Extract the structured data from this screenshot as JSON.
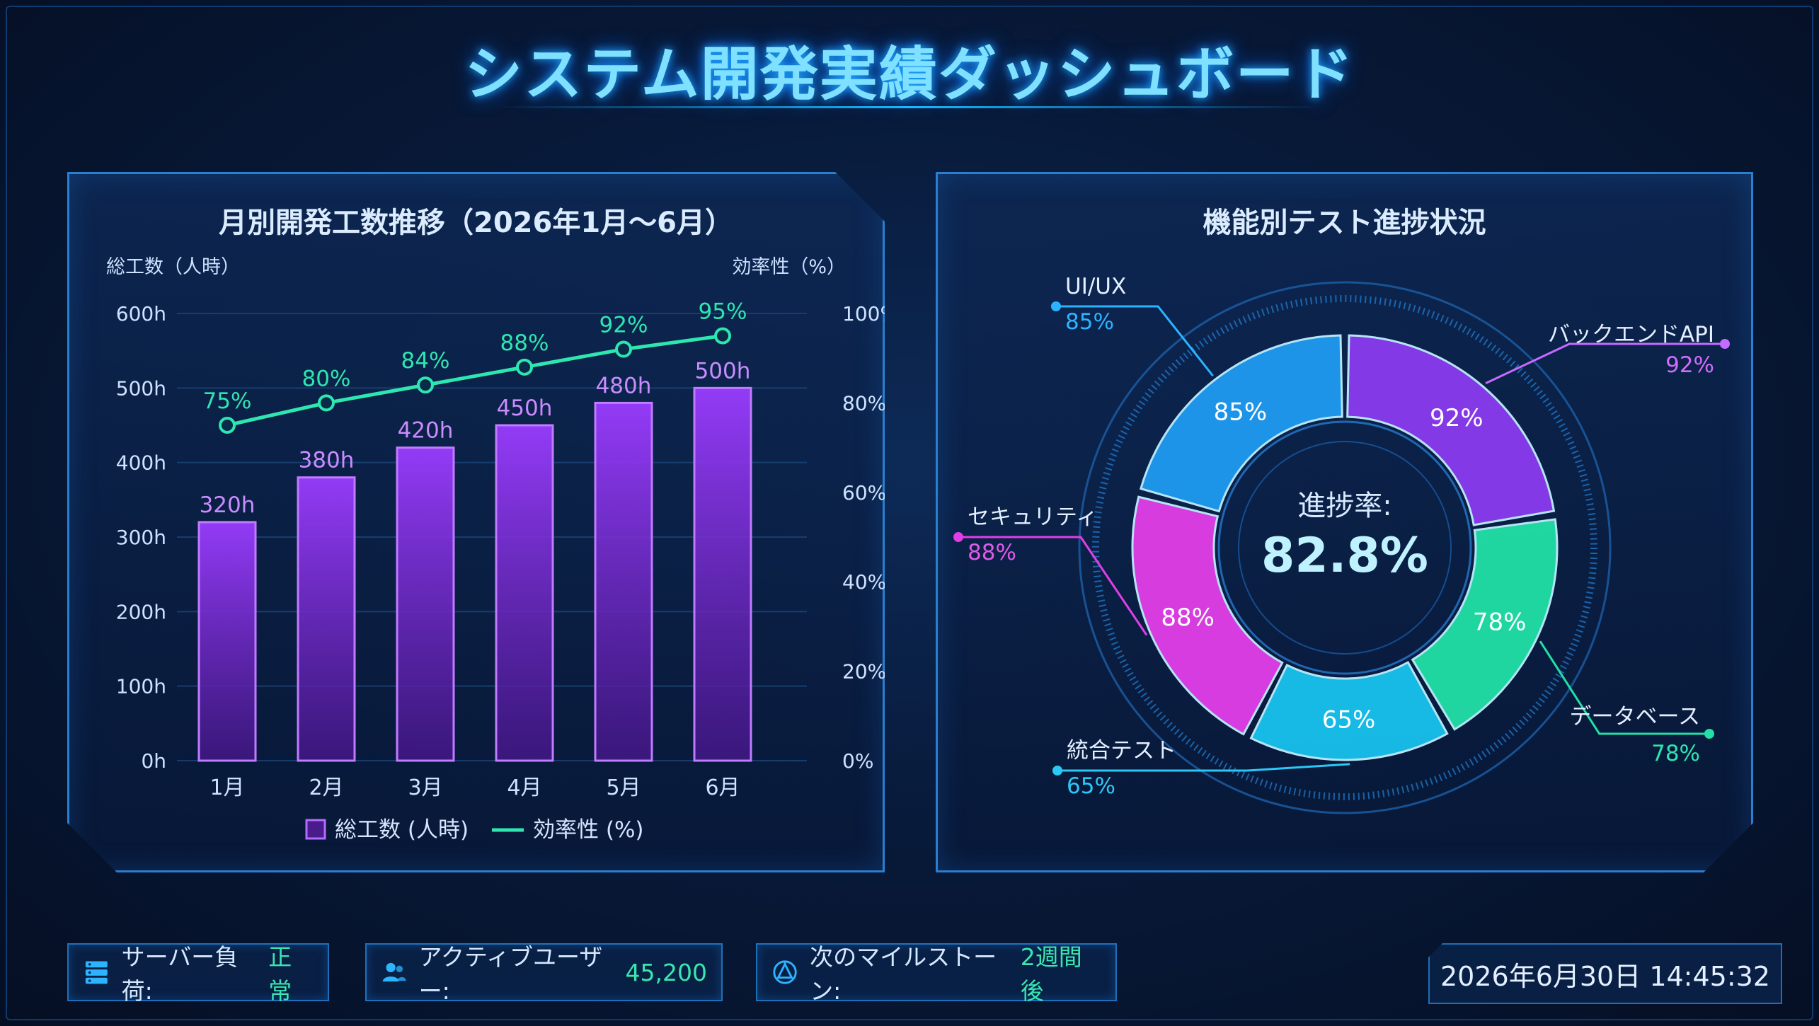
{
  "dashboard": {
    "title": "システム開発実績ダッシュボード"
  },
  "left_panel": {
    "title": "月別開発工数推移（2026年1月〜6月）",
    "y_left_label": "総工数（人時）",
    "y_right_label": "効率性（%）",
    "legend_bar": "総工数 (人時)",
    "legend_line": "効率性 (%)"
  },
  "right_panel": {
    "title": "機能別テスト進捗状況",
    "center_label": "進捗率:",
    "center_value": "82.8%"
  },
  "status_bar": {
    "server_label": "サーバー負荷:",
    "server_value": "正常",
    "users_label": "アクティブユーザー:",
    "users_value": "45,200",
    "milestone_label": "次のマイルストーン:",
    "milestone_value": "2週間後",
    "datetime": "2026年6月30日 14:45:32"
  },
  "colors": {
    "bar": "#a54dff",
    "line": "#2ee6b0",
    "accent": "#19b8ff"
  },
  "chart_data": [
    {
      "type": "bar",
      "categories": [
        "1月",
        "2月",
        "3月",
        "4月",
        "5月",
        "6月"
      ],
      "series": [
        {
          "name": "総工数 (人時)",
          "type": "bar",
          "axis": "left",
          "values": [
            320,
            380,
            420,
            450,
            480,
            500
          ],
          "labels": [
            "320h",
            "380h",
            "420h",
            "450h",
            "480h",
            "500h"
          ]
        },
        {
          "name": "効率性 (%)",
          "type": "line",
          "axis": "right",
          "values": [
            75,
            80,
            84,
            88,
            92,
            95
          ],
          "labels": [
            "75%",
            "80%",
            "84%",
            "88%",
            "92%",
            "95%"
          ]
        }
      ],
      "ylim": [
        0,
        600
      ],
      "yticks": [
        "0h",
        "100h",
        "200h",
        "300h",
        "400h",
        "500h",
        "600h"
      ],
      "y2lim": [
        0,
        100
      ],
      "y2ticks": [
        "0%",
        "20%",
        "40%",
        "60%",
        "80%",
        "100%"
      ],
      "title": "月別開発工数推移（2026年1月〜6月）",
      "ylabel": "総工数（人時）",
      "y2label": "効率性（%）",
      "legend": "bottom-center",
      "grid": true
    },
    {
      "type": "pie",
      "style": "donut",
      "title": "機能別テスト進捗状況",
      "slices": [
        {
          "label": "バックエンドAPI",
          "value": 92,
          "text": "92%",
          "color": "#8b3bf0"
        },
        {
          "label": "データベース",
          "value": 78,
          "text": "78%",
          "color": "#22e0a6"
        },
        {
          "label": "統合テスト",
          "value": 65,
          "text": "65%",
          "color": "#18c2ee"
        },
        {
          "label": "セキュリティ",
          "value": 88,
          "text": "88%",
          "color": "#e23ee8"
        },
        {
          "label": "UI/UX",
          "value": 85,
          "text": "85%",
          "color": "#1e9bf0"
        }
      ],
      "center": "進捗率: 82.8%"
    }
  ]
}
